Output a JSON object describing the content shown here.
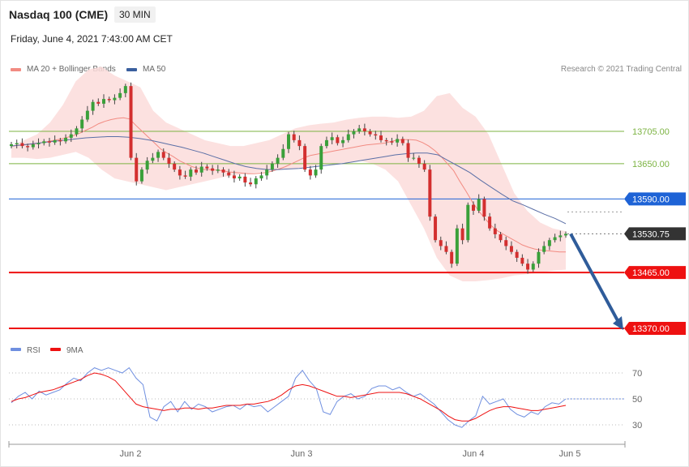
{
  "header": {
    "title": "Nasdaq 100 (CME)",
    "timeframe": "30 MIN",
    "datetime": "Friday, June 4, 2021 7:43:00 AM CET"
  },
  "legend": {
    "ma20": {
      "label": "MA 20 + Bollinger Bands",
      "color": "#f28b82"
    },
    "ma50": {
      "label": "MA 50",
      "color": "#3a5f9e"
    }
  },
  "copyright": "Research © 2021 Trading Central",
  "chart_data": [
    {
      "type": "candlestick",
      "title": "Nasdaq 100 (CME)",
      "timeframe": "30 MIN",
      "x_ticks": [
        "Jun 2",
        "Jun 3",
        "Jun 4",
        "Jun 5"
      ],
      "ylim": [
        13340,
        13820
      ],
      "levels": [
        {
          "value": 13705.0,
          "label": "13705.00",
          "color": "#7cb342",
          "kind": "resistance"
        },
        {
          "value": 13650.0,
          "label": "13650.00",
          "color": "#7cb342",
          "kind": "resistance"
        },
        {
          "value": 13590.0,
          "label": "13590.00",
          "color": "#1e63d6",
          "kind": "pivot"
        },
        {
          "value": 13530.75,
          "label": "13530.75",
          "color": "#333333",
          "kind": "last-price"
        },
        {
          "value": 13465.0,
          "label": "13465.00",
          "color": "#ee1111",
          "kind": "support"
        },
        {
          "value": 13370.0,
          "label": "13370.00",
          "color": "#ee1111",
          "kind": "support"
        }
      ],
      "close": [
        13683,
        13685,
        13680,
        13678,
        13683,
        13685,
        13688,
        13686,
        13690,
        13688,
        13694,
        13700,
        13710,
        13725,
        13740,
        13755,
        13752,
        13760,
        13758,
        13762,
        13770,
        13782,
        13660,
        13620,
        13640,
        13655,
        13660,
        13670,
        13660,
        13650,
        13640,
        13630,
        13628,
        13640,
        13635,
        13645,
        13642,
        13638,
        13640,
        13635,
        13630,
        13625,
        13628,
        13618,
        13615,
        13625,
        13630,
        13640,
        13650,
        13660,
        13675,
        13700,
        13690,
        13680,
        13640,
        13630,
        13640,
        13680,
        13690,
        13695,
        13685,
        13690,
        13700,
        13705,
        13710,
        13705,
        13700,
        13698,
        13690,
        13688,
        13686,
        13692,
        13685,
        13660,
        13660,
        13650,
        13640,
        13560,
        13520,
        13510,
        13500,
        13480,
        13540,
        13520,
        13580,
        13570,
        13590,
        13560,
        13540,
        13530,
        13520,
        13510,
        13500,
        13490,
        13480,
        13470,
        13480,
        13500,
        13510,
        13520,
        13525,
        13528,
        13530.75
      ],
      "ma20": [
        13680,
        13681,
        13682,
        13683,
        13684,
        13686,
        13688,
        13690,
        13692,
        13695,
        13698,
        13702,
        13707,
        13712,
        13718,
        13722,
        13725,
        13727,
        13728,
        13726,
        13715,
        13705,
        13695,
        13685,
        13675,
        13668,
        13662,
        13655,
        13650,
        13645,
        13642,
        13640,
        13640,
        13639,
        13638,
        13636,
        13635,
        13634,
        13633,
        13633,
        13634,
        13635,
        13638,
        13641,
        13645,
        13650,
        13655,
        13660,
        13664,
        13666,
        13668,
        13670,
        13672,
        13674,
        13676,
        13678,
        13680,
        13682,
        13683,
        13684,
        13685,
        13688,
        13690,
        13691,
        13691,
        13690,
        13686,
        13680,
        13672,
        13662,
        13650,
        13638,
        13620,
        13603,
        13585,
        13570,
        13557,
        13545,
        13536,
        13530,
        13524,
        13518,
        13512,
        13508,
        13505,
        13503,
        13502,
        13501,
        13500,
        13500
      ],
      "ma50": [
        13680,
        13682,
        13684,
        13686,
        13688,
        13690,
        13692,
        13694,
        13695,
        13696,
        13696,
        13695,
        13693,
        13690,
        13686,
        13682,
        13678,
        13673,
        13668,
        13662,
        13656,
        13650,
        13645,
        13642,
        13640,
        13640,
        13641,
        13642,
        13644,
        13646,
        13648,
        13650,
        13653,
        13656,
        13659,
        13662,
        13665,
        13667,
        13668,
        13668,
        13665,
        13655,
        13645,
        13635,
        13622,
        13610,
        13598,
        13587,
        13580,
        13572,
        13564,
        13557,
        13548
      ],
      "bands": {
        "upper": [
          13680,
          13690,
          13700,
          13720,
          13750,
          13790,
          13810,
          13815,
          13800,
          13790,
          13780,
          13740,
          13720,
          13710,
          13700,
          13690,
          13685,
          13680,
          13680,
          13685,
          13690,
          13700,
          13710,
          13715,
          13718,
          13720,
          13725,
          13728,
          13730,
          13730,
          13728,
          13730,
          13740,
          13765,
          13770,
          13745,
          13730,
          13700,
          13650,
          13600,
          13570,
          13550,
          13540,
          13535
        ],
        "lower": [
          13660,
          13660,
          13658,
          13660,
          13665,
          13670,
          13660,
          13640,
          13625,
          13620,
          13615,
          13610,
          13605,
          13610,
          13615,
          13620,
          13625,
          13630,
          13632,
          13635,
          13638,
          13640,
          13642,
          13645,
          13648,
          13650,
          13652,
          13655,
          13650,
          13640,
          13620,
          13580,
          13540,
          13490,
          13460,
          13450,
          13450,
          13452,
          13455,
          13460,
          13462,
          13465,
          13468,
          13470
        ]
      }
    },
    {
      "type": "line",
      "title": "RSI",
      "series": [
        {
          "name": "RSI",
          "color": "#6f8fe0",
          "values": [
            47,
            52,
            55,
            50,
            56,
            53,
            55,
            57,
            62,
            66,
            64,
            70,
            74,
            72,
            74,
            72,
            70,
            74,
            66,
            61,
            36,
            33,
            44,
            48,
            40,
            48,
            42,
            46,
            44,
            40,
            42,
            44,
            45,
            42,
            46,
            44,
            45,
            40,
            44,
            48,
            52,
            66,
            72,
            64,
            58,
            40,
            38,
            48,
            52,
            54,
            50,
            52,
            58,
            60,
            60,
            57,
            59,
            55,
            52,
            54,
            50,
            46,
            40,
            34,
            30,
            28,
            33,
            37,
            52,
            46,
            48,
            50,
            42,
            38,
            36,
            40,
            38,
            44,
            47,
            46,
            50
          ]
        },
        {
          "name": "9MA",
          "color": "#ee1111",
          "values": [
            48,
            50,
            51,
            53,
            55,
            56,
            57,
            59,
            61,
            63,
            65,
            68,
            70,
            69,
            67,
            64,
            58,
            52,
            46,
            44,
            43,
            42,
            41,
            42,
            42,
            43,
            43,
            42,
            43,
            43,
            44,
            45,
            45,
            45,
            46,
            46,
            47,
            48,
            50,
            53,
            57,
            60,
            61,
            60,
            58,
            56,
            54,
            52,
            52,
            51,
            52,
            53,
            54,
            55,
            55,
            55,
            55,
            54,
            52,
            50,
            47,
            44,
            41,
            37,
            34,
            33,
            33,
            35,
            38,
            41,
            43,
            44,
            44,
            43,
            42,
            41,
            41,
            42,
            43,
            44,
            45
          ]
        }
      ],
      "levels": [
        70,
        50,
        30
      ],
      "tick_labels": [
        "70",
        "50",
        "30"
      ],
      "legend": [
        "RSI",
        "9MA"
      ]
    }
  ]
}
